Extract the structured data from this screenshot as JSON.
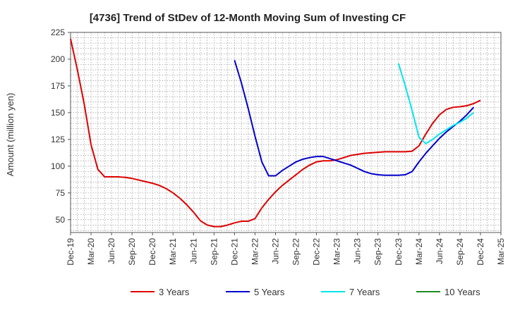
{
  "chart_data": {
    "type": "line",
    "title": "[4736]  Trend of StDev of 12-Month Moving Sum of Investing CF",
    "xlabel": "",
    "ylabel": "Amount (million yen)",
    "ylim": [
      38,
      225
    ],
    "yticks": [
      50,
      75,
      100,
      125,
      150,
      175,
      200,
      225
    ],
    "x_tick_labels": [
      "Dec-19",
      "Mar-20",
      "Jun-20",
      "Sep-20",
      "Dec-20",
      "Mar-21",
      "Jun-21",
      "Sep-21",
      "Dec-21",
      "Mar-22",
      "Jun-22",
      "Sep-22",
      "Dec-22",
      "Mar-23",
      "Jun-23",
      "Sep-23",
      "Dec-23",
      "Mar-24",
      "Jun-24",
      "Sep-24",
      "Dec-24",
      "Mar-25"
    ],
    "x_range_months": [
      0,
      63
    ],
    "grid": true,
    "legend_position": "bottom",
    "series": [
      {
        "name": "3 Years",
        "color": "#dd0000",
        "start_month": 0,
        "values": [
          219,
          190,
          158,
          120,
          97,
          90,
          90,
          90,
          89.5,
          88.5,
          87,
          85.5,
          84,
          82,
          79,
          75,
          70,
          64,
          57,
          49,
          45,
          43.5,
          43.5,
          45,
          47,
          48.5,
          48.5,
          51,
          61,
          69,
          76,
          82,
          87,
          92,
          97,
          101,
          104,
          105,
          105,
          106,
          108,
          110,
          111,
          112,
          112.5,
          113,
          113.5,
          113.5,
          113.5,
          113.5,
          114,
          119,
          130,
          140,
          148,
          153,
          155,
          155.5,
          156.5,
          158.5,
          161.5
        ]
      },
      {
        "name": "5 Years",
        "color": "#0000cc",
        "start_month": 24,
        "values": [
          199,
          178,
          154,
          128,
          104,
          91,
          91,
          96,
          100,
          104,
          106.5,
          108,
          109,
          109,
          107,
          105,
          103,
          101,
          98,
          95,
          93,
          92,
          91.5,
          91.5,
          91.5,
          92,
          95,
          104,
          112,
          119,
          126,
          132,
          137,
          142,
          148,
          155
        ]
      },
      {
        "name": "7 Years",
        "color": "#00e5ee",
        "start_month": 48,
        "values": [
          196,
          175,
          152,
          127,
          121,
          125,
          130,
          134,
          138,
          141,
          145,
          150
        ]
      },
      {
        "name": "10 Years",
        "color": "#228b22",
        "start_month": 0,
        "values": []
      }
    ]
  }
}
